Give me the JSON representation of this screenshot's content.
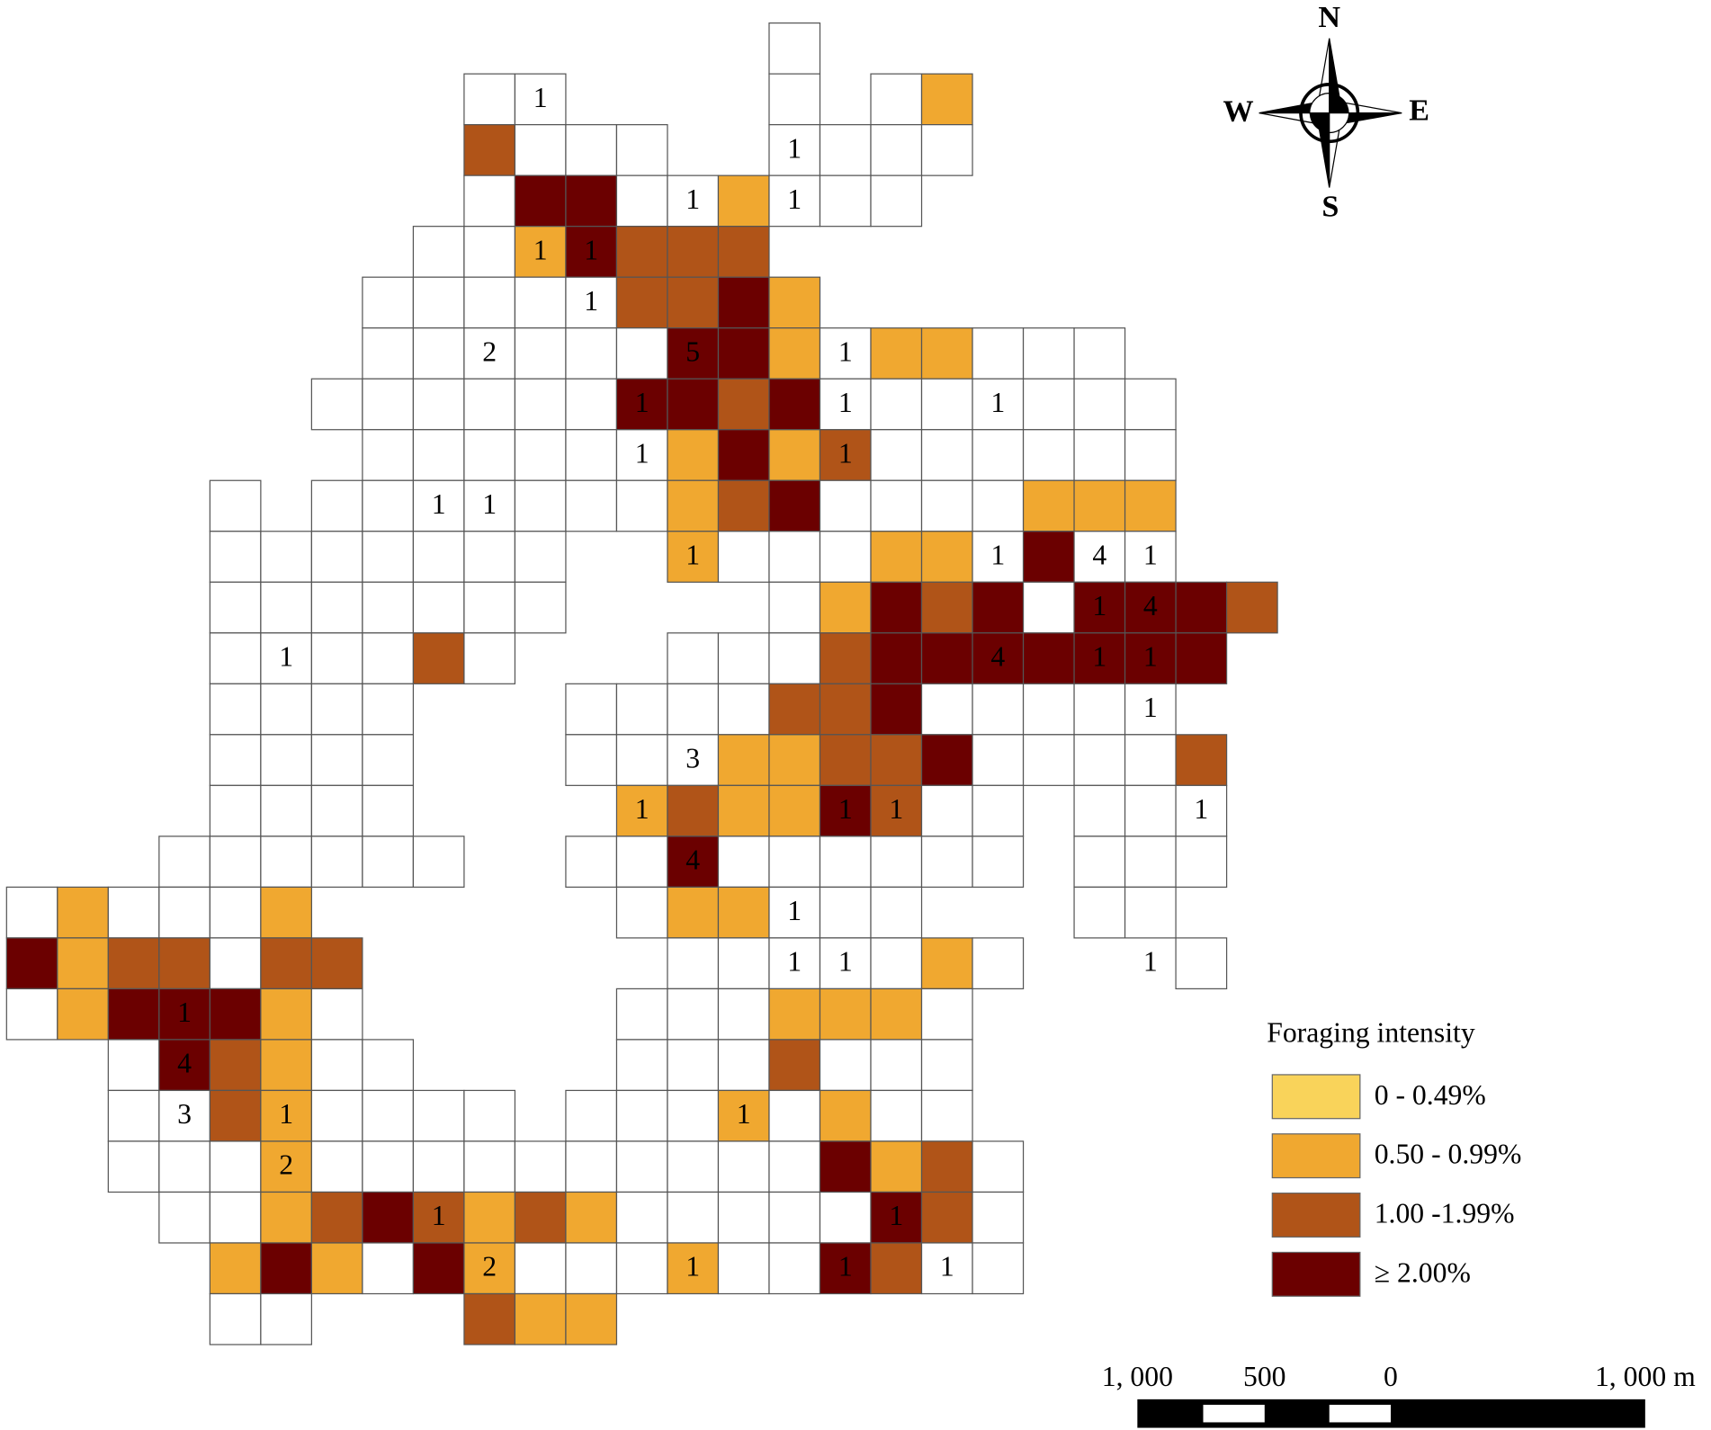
{
  "map": {
    "cell_key": {
      "w": "#ffffff",
      "1": "#f0a830",
      "2": "#b05418",
      "3": "#6b0000"
    },
    "rows": [
      "...............w.........",
      ".........ww....w.w1......",
      ".........2www..wwww......",
      ".........w33ww1www.......",
      "........ww13222..........",
      ".......wwwww2231.........",
      ".......wwwwww331w11www...",
      "......wwwwww3323wwwwwww..",
      ".......wwwwww1312wwwwww..",
      "....w.wwwwwww123wwww111..",
      "....wwwwwww..1www11w3ww..",
      "....wwwwwww....w1323w3332.",
      "....wwww2w...www23333333.",
      "....wwww...wwww223wwwww..",
      "....wwww...www11223wwww2..",
      "....wwww....121132ww.www.",
      "...wwwwww..ww3wwwwww.www.",
      "w1www1......w11www...ww..",
      "3122w22......wwwww1w...w..",
      "w13331w.....www111w......",
      "..w321ww....www2www......",
      "..ww21wwww.www1w1ww......",
      "..www1wwwwwwwwww312w......",
      "...ww1232121wwwww32w......",
      "....131w31www1ww32ww.....",
      "....ww...211............."
    ],
    "counts": [
      [
        1,
        10,
        "1"
      ],
      [
        2,
        15,
        "1"
      ],
      [
        3,
        13,
        "1"
      ],
      [
        3,
        15,
        "1"
      ],
      [
        4,
        10,
        "1"
      ],
      [
        4,
        11,
        "1"
      ],
      [
        5,
        11,
        "1"
      ],
      [
        6,
        9,
        "2"
      ],
      [
        6,
        13,
        "5"
      ],
      [
        6,
        16,
        "1"
      ],
      [
        7,
        12,
        "1"
      ],
      [
        7,
        16,
        "1"
      ],
      [
        7,
        19,
        "1"
      ],
      [
        8,
        12,
        "1"
      ],
      [
        8,
        16,
        "1"
      ],
      [
        9,
        8,
        "1"
      ],
      [
        9,
        9,
        "1"
      ],
      [
        10,
        13,
        "1"
      ],
      [
        10,
        19,
        "1"
      ],
      [
        10,
        21,
        "4"
      ],
      [
        10,
        22,
        "1"
      ],
      [
        11,
        21,
        "1"
      ],
      [
        11,
        22,
        "4"
      ],
      [
        12,
        5,
        "1"
      ],
      [
        12,
        19,
        "4"
      ],
      [
        12,
        21,
        "1"
      ],
      [
        12,
        22,
        "1"
      ],
      [
        13,
        22,
        "1"
      ],
      [
        14,
        13,
        "3"
      ],
      [
        15,
        12,
        "1"
      ],
      [
        15,
        16,
        "1"
      ],
      [
        15,
        17,
        "1"
      ],
      [
        15,
        23,
        "1"
      ],
      [
        16,
        13,
        "4"
      ],
      [
        17,
        15,
        "1"
      ],
      [
        18,
        15,
        "1"
      ],
      [
        18,
        16,
        "1"
      ],
      [
        18,
        22,
        "1"
      ],
      [
        19,
        3,
        "1"
      ],
      [
        20,
        3,
        "4"
      ],
      [
        21,
        3,
        "3"
      ],
      [
        21,
        5,
        "1"
      ],
      [
        21,
        14,
        "1"
      ],
      [
        22,
        5,
        "2"
      ],
      [
        23,
        8,
        "1"
      ],
      [
        23,
        17,
        "1"
      ],
      [
        24,
        9,
        "2"
      ],
      [
        24,
        13,
        "1"
      ],
      [
        24,
        16,
        "1"
      ],
      [
        24,
        18,
        "1"
      ]
    ]
  },
  "legend": {
    "title": "Foraging intensity",
    "items": [
      {
        "label": "0 - 0.49%",
        "color": "#f9d35a"
      },
      {
        "label": "0.50 - 0.99%",
        "color": "#f0a830"
      },
      {
        "label": "1.00 -1.99%",
        "color": "#b05418"
      },
      {
        "label": "≥ 2.00%",
        "color": "#6b0000"
      }
    ]
  },
  "compass": {
    "n": "N",
    "s": "S",
    "e": "E",
    "w": "W"
  },
  "scale_bar": {
    "labels": [
      "1, 000",
      "500",
      "0",
      "1, 000 m"
    ]
  }
}
